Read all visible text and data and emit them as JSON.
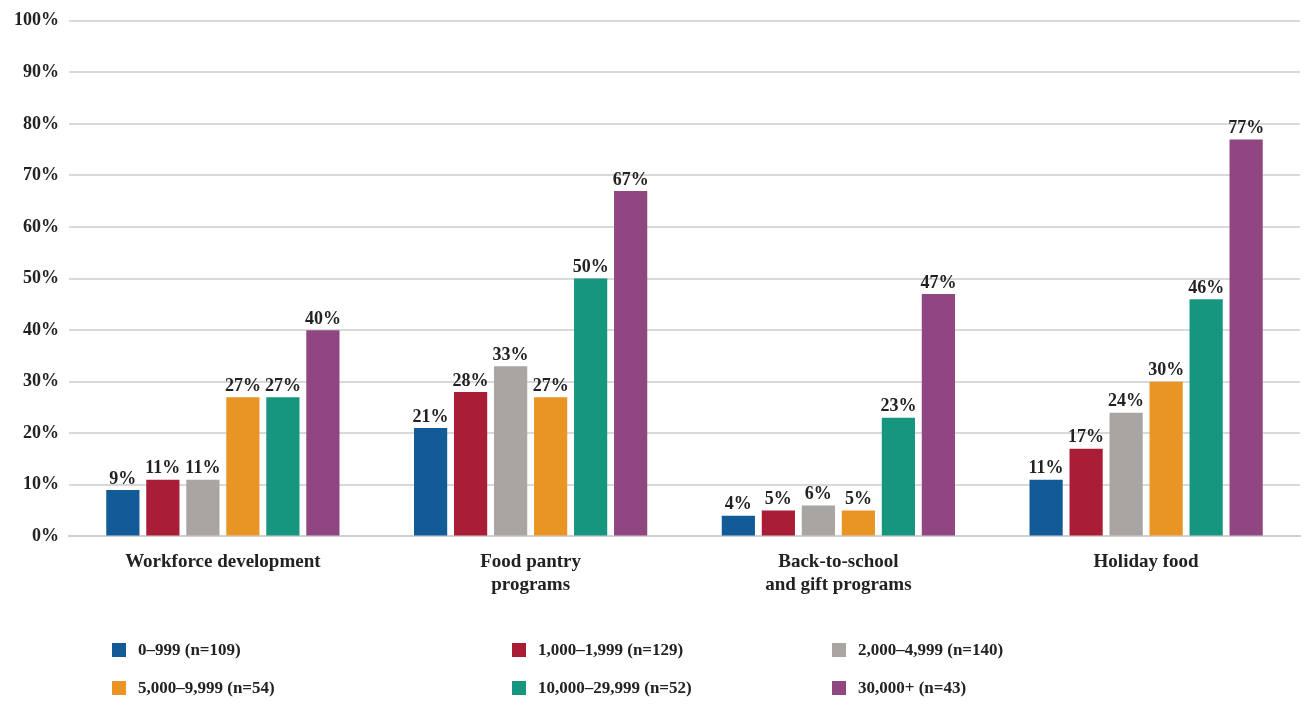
{
  "chart_data": {
    "type": "bar",
    "categories": [
      "Workforce development",
      "Food pantry\nprograms",
      "Back-to-school\nand gift programs",
      "Holiday food"
    ],
    "series": [
      {
        "name": "0–999 (n=109)",
        "color": "#125b97",
        "values": [
          9,
          21,
          4,
          11
        ],
        "value_labels": [
          "9%",
          "21%",
          "4%",
          "11%"
        ]
      },
      {
        "name": "1,000–1,999 (n=129)",
        "color": "#a91d36",
        "values": [
          11,
          28,
          5,
          17
        ],
        "value_labels": [
          "11%",
          "28%",
          "5%",
          "17%"
        ]
      },
      {
        "name": "2,000–4,999 (n=140)",
        "color": "#a8a5a3",
        "values": [
          11,
          33,
          6,
          24
        ],
        "value_labels": [
          "11%",
          "33%",
          "6%",
          "24%"
        ]
      },
      {
        "name": "5,000–9,999 (n=54)",
        "color": "#e99525",
        "values": [
          27,
          27,
          5,
          30
        ],
        "value_labels": [
          "27%",
          "27%",
          "5%",
          "30%"
        ]
      },
      {
        "name": "10,000–29,999 (n=52)",
        "color": "#17967f",
        "values": [
          27,
          50,
          23,
          46
        ],
        "value_labels": [
          "27%",
          "50%",
          "23%",
          "46%"
        ]
      },
      {
        "name": "30,000+ (n=43)",
        "color": "#904680",
        "values": [
          40,
          67,
          47,
          77
        ],
        "value_labels": [
          "40%",
          "67%",
          "47%",
          "77%"
        ]
      }
    ],
    "ylim": [
      0,
      100
    ],
    "yticks": [
      {
        "value": 0,
        "label": "0%"
      },
      {
        "value": 10,
        "label": "10%"
      },
      {
        "value": 20,
        "label": "20%"
      },
      {
        "value": 30,
        "label": "30%"
      },
      {
        "value": 40,
        "label": "40%"
      },
      {
        "value": 50,
        "label": "50%"
      },
      {
        "value": 60,
        "label": "60%"
      },
      {
        "value": 70,
        "label": "70%"
      },
      {
        "value": 80,
        "label": "80%"
      },
      {
        "value": 90,
        "label": "90%"
      },
      {
        "value": 100,
        "label": "100%"
      }
    ],
    "grid": "y",
    "legend": "bottom"
  }
}
